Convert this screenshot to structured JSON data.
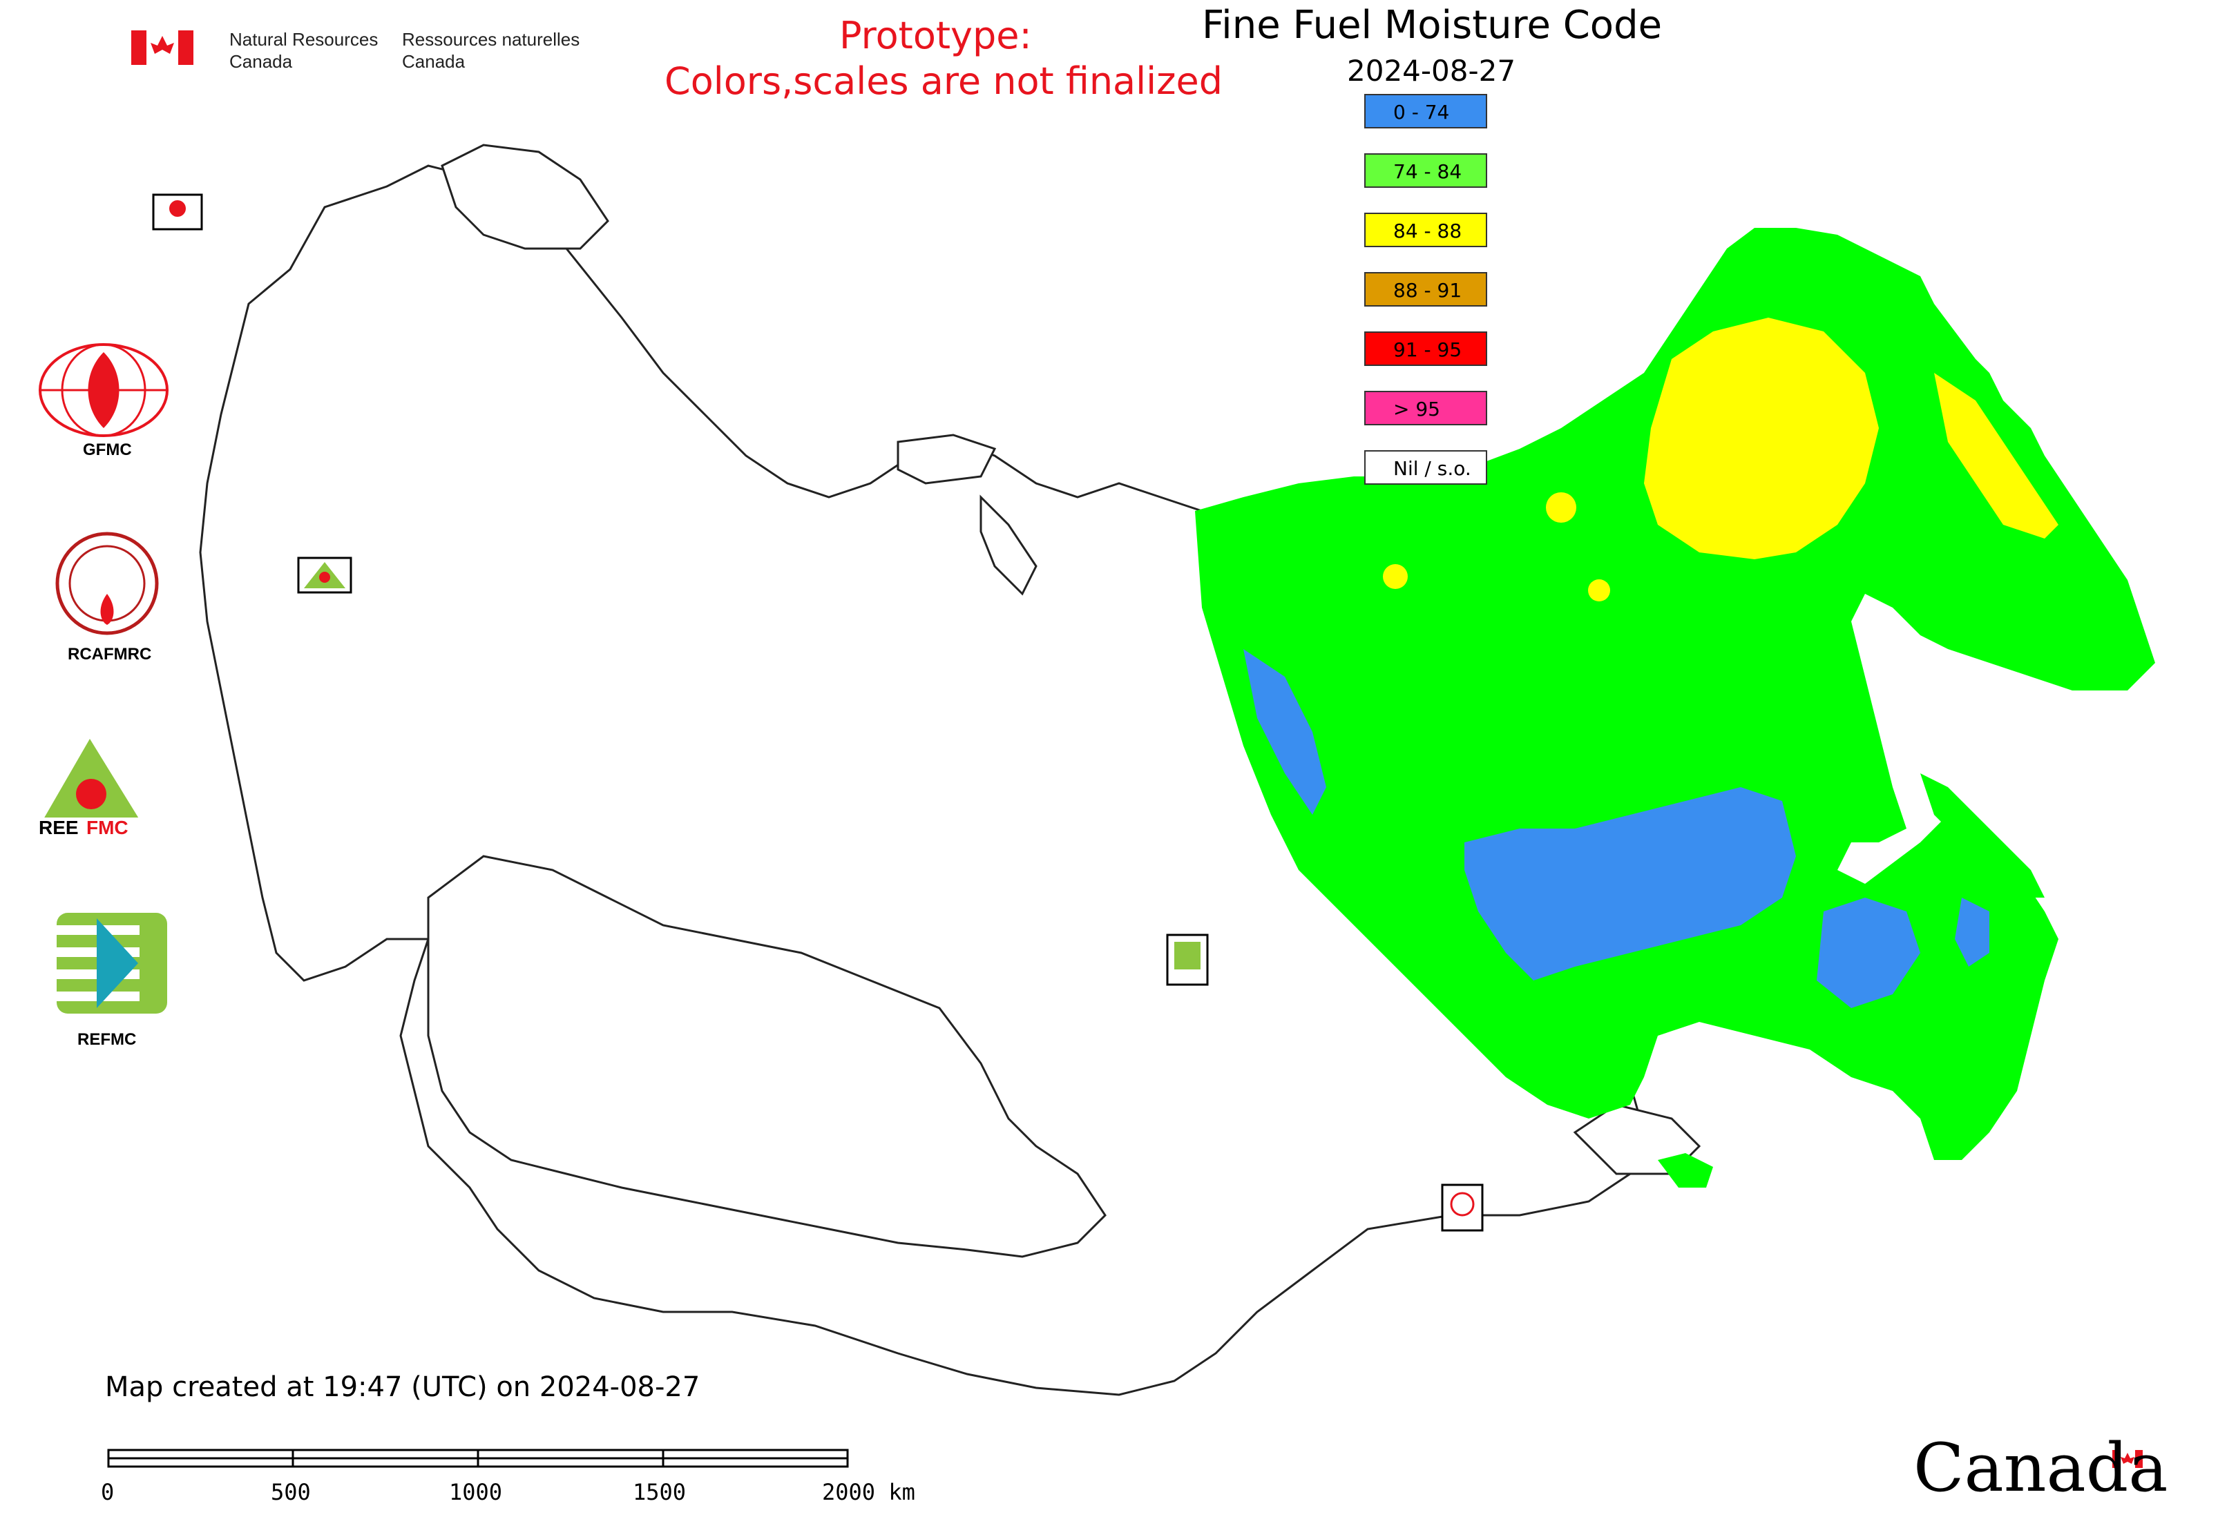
{
  "header": {
    "title": "Fine Fuel Moisture Code",
    "date": "2024-08-27",
    "prototype_line1": "Prototype:",
    "prototype_line2": "Colors,scales are not finalized"
  },
  "agency": {
    "name_en_line1": "Natural Resources",
    "name_en_line2": "Canada",
    "name_fr_line1": "Ressources naturelles",
    "name_fr_line2": "Canada",
    "flag_color": "#e8141e"
  },
  "legend": [
    {
      "label": "0 - 74",
      "color": "#3a8ef0"
    },
    {
      "label": "74 - 84",
      "color": "#66ff3a"
    },
    {
      "label": "84 - 88",
      "color": "#ffff00"
    },
    {
      "label": "88 - 91",
      "color": "#dd9a00"
    },
    {
      "label": "91 - 95",
      "color": "#ff0000"
    },
    {
      "label": "> 95",
      "color": "#ff3399"
    },
    {
      "label": "Nil / s.o.",
      "color": "#ffffff"
    }
  ],
  "logos": {
    "gfmc": "GFMC",
    "rcafmrc": "RCAFMRC",
    "reefmc": "REEFMC",
    "refmc": "REFMC"
  },
  "footer": {
    "created": "Map created at 19:47 (UTC) on 2024-08-27",
    "wordmark": "Canada"
  },
  "scale_bar": {
    "labels": [
      "0",
      "500",
      "1000",
      "1500",
      "2000 km"
    ]
  },
  "map_colors": {
    "green": "#00ff00",
    "yellow": "#ffff00",
    "blue": "#3a8ef0",
    "outline": "#222222"
  }
}
